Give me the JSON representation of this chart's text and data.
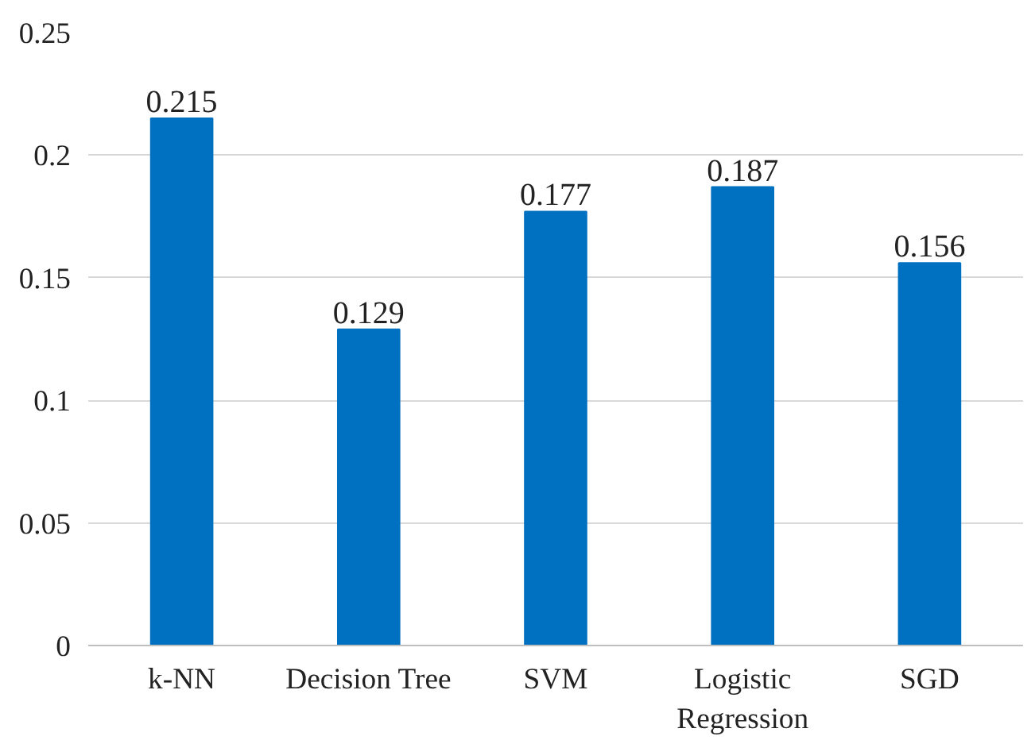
{
  "chart_data": {
    "type": "bar",
    "categories": [
      "k-NN",
      "Decision Tree",
      "SVM",
      "Logistic Regression",
      "SGD"
    ],
    "values": [
      0.215,
      0.129,
      0.177,
      0.187,
      0.156
    ],
    "color": "#0070c0",
    "ylim": [
      0,
      0.25
    ],
    "yticks": [
      {
        "value": 0,
        "label": "0"
      },
      0.05,
      0.1,
      0.15,
      0.2,
      0.25
    ],
    "grid": "y",
    "data_labels": true
  }
}
